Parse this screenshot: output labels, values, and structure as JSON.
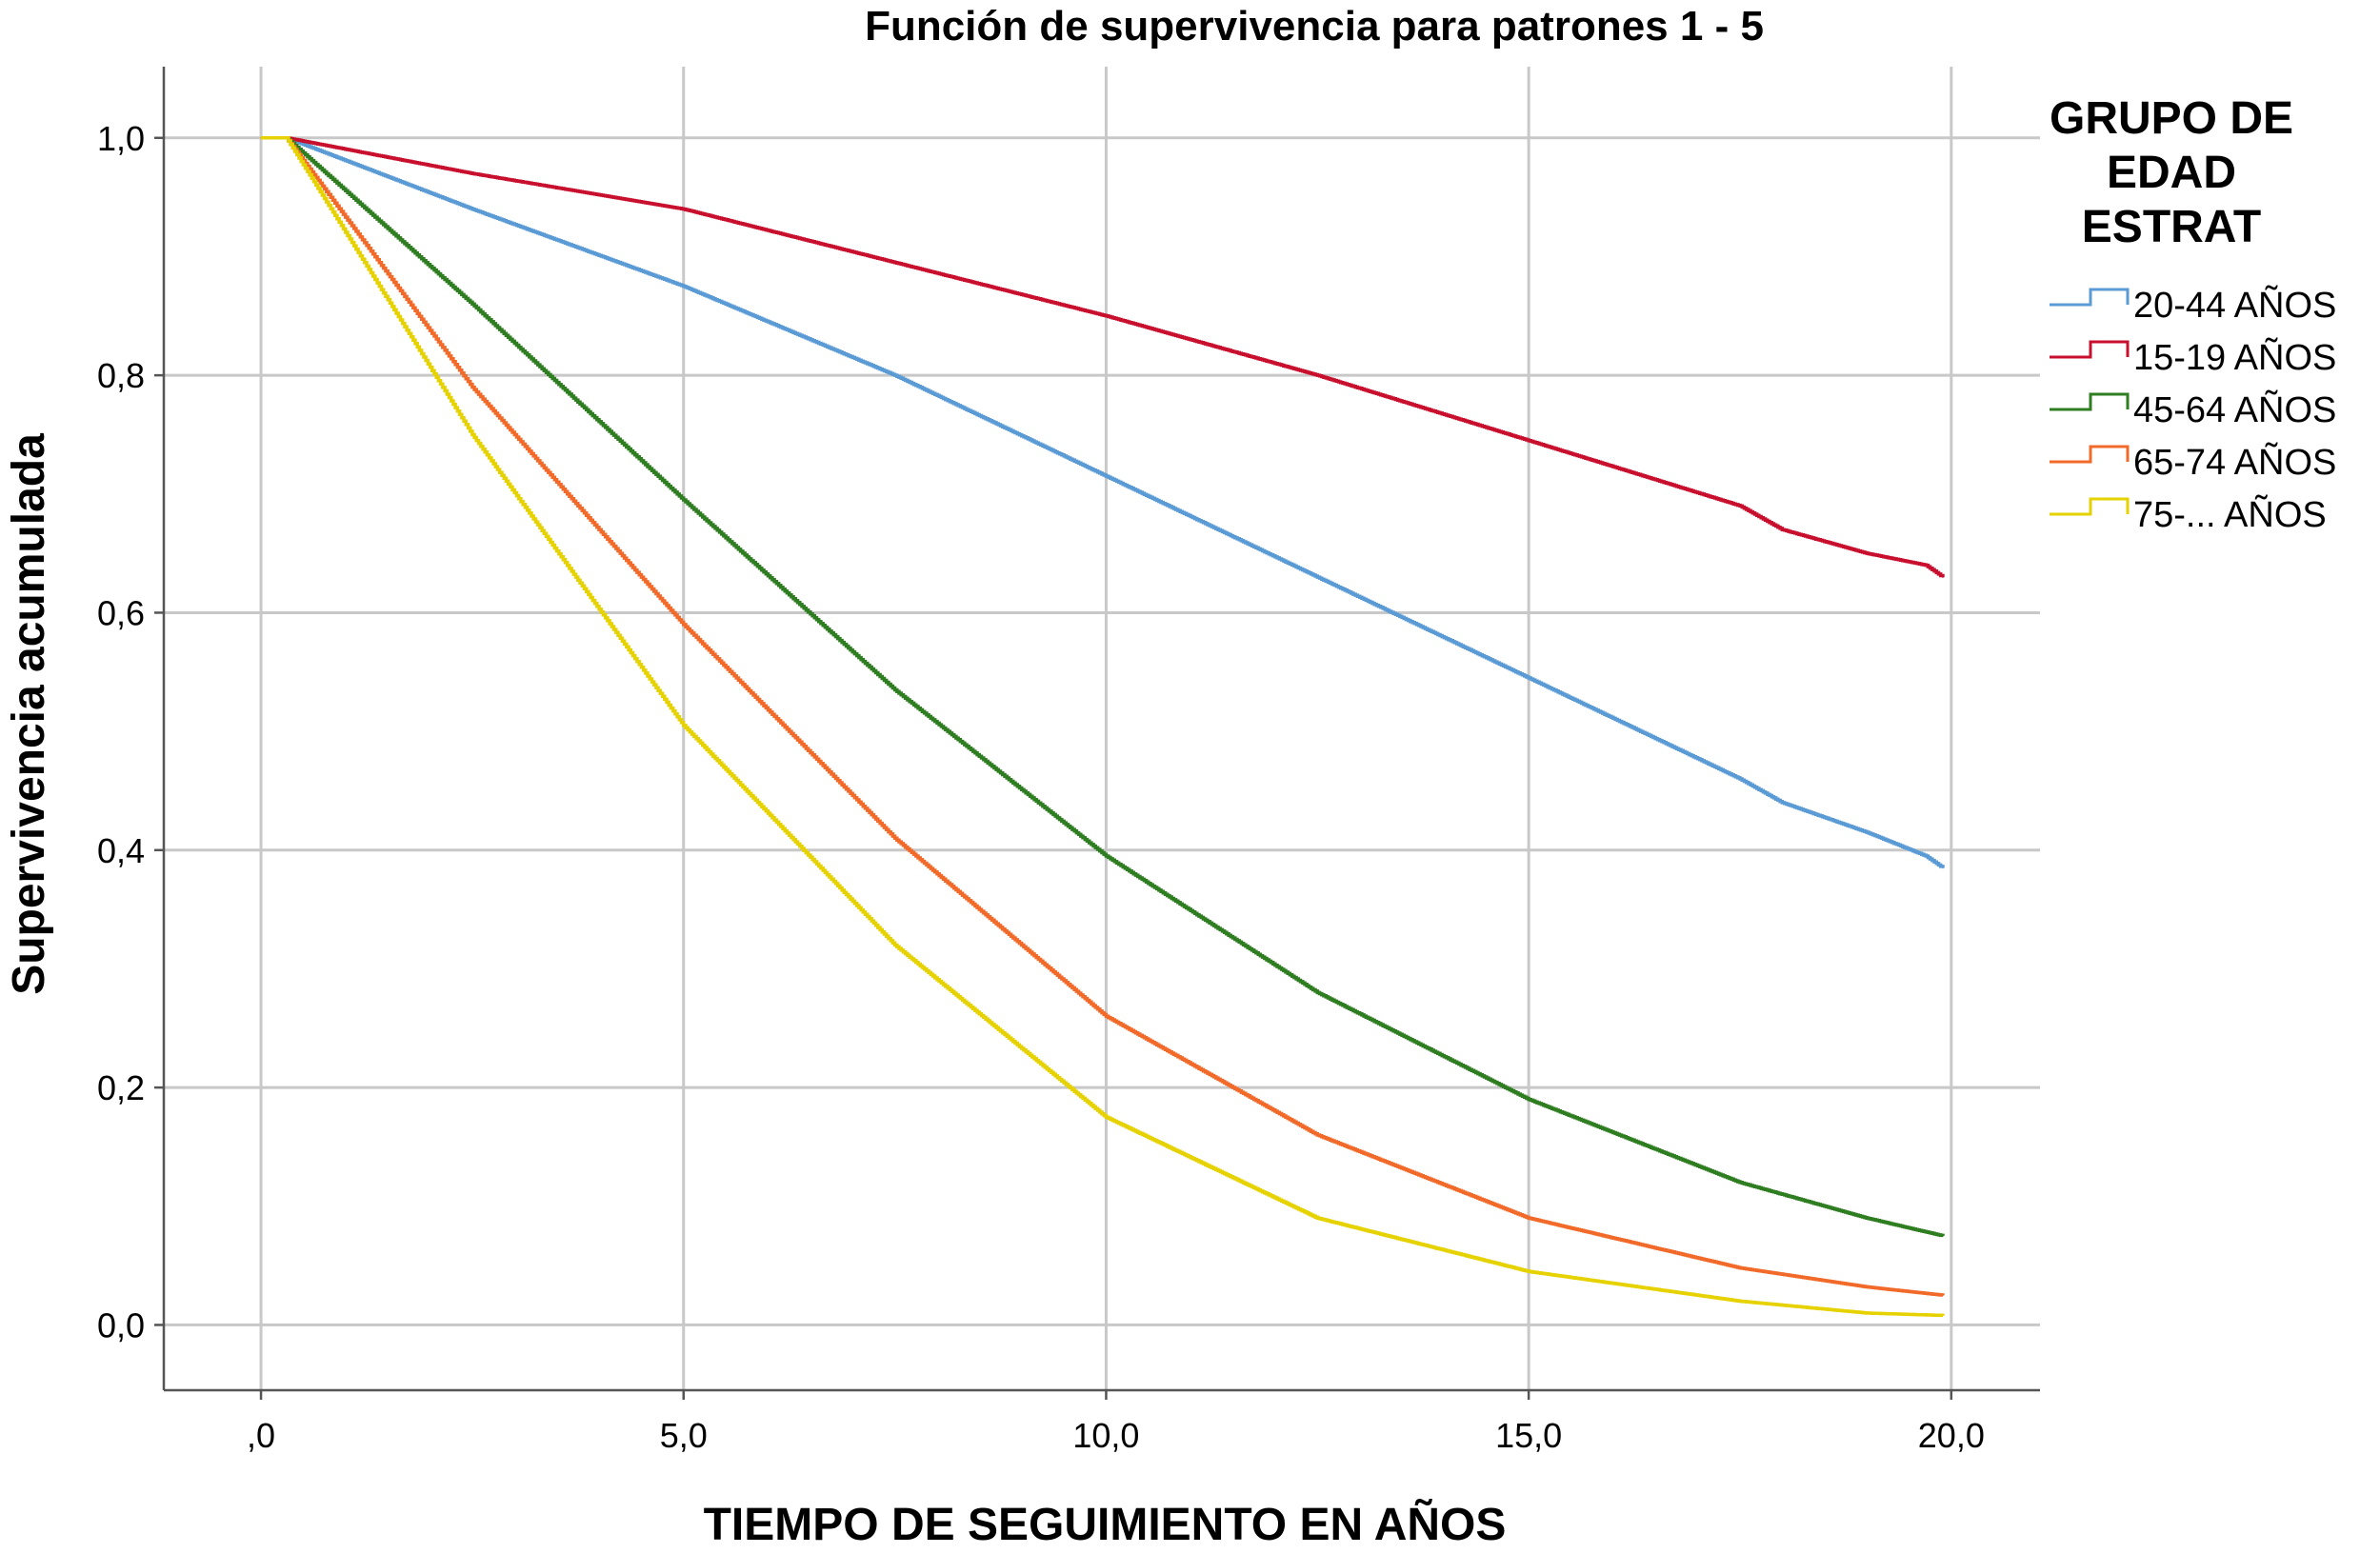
{
  "chart_data": {
    "type": "line",
    "title": "Función de supervivencia para patrones 1 - 5",
    "xlabel": "TIEMPO DE SEGUIMIENTO EN AÑOS",
    "ylabel": "Supervivencia acumulada",
    "xlim": [
      -1.15,
      21.05
    ],
    "ylim": [
      -0.055,
      1.06
    ],
    "x_ticks": [
      0,
      5,
      10,
      15,
      20
    ],
    "x_tick_labels": [
      ",0",
      "5,0",
      "10,0",
      "15,0",
      "20,0"
    ],
    "y_ticks": [
      0,
      0.2,
      0.4,
      0.6,
      0.8,
      1.0
    ],
    "y_tick_labels": [
      "0,0",
      "0,2",
      "0,4",
      "0,6",
      "0,8",
      "1,0"
    ],
    "grid": true,
    "legend": {
      "title": "GRUPO DE EDAD ESTRAT",
      "title_lines": [
        "GRUPO DE",
        "EDAD",
        "ESTRAT"
      ],
      "placement": "right"
    },
    "series": [
      {
        "name": "20-44 AÑOS",
        "color": "#5b9bd5",
        "x": [
          0.0,
          0.3,
          2.5,
          5.0,
          7.5,
          10.0,
          12.5,
          15.0,
          17.5,
          18.0,
          19.0,
          19.7,
          19.9
        ],
        "y": [
          1.0,
          1.0,
          0.94,
          0.875,
          0.8,
          0.715,
          0.63,
          0.545,
          0.46,
          0.44,
          0.415,
          0.395,
          0.385
        ]
      },
      {
        "name": "15-19 AÑOS",
        "color": "#c8102e",
        "x": [
          0.0,
          0.3,
          2.5,
          5.0,
          7.5,
          10.0,
          12.5,
          15.0,
          17.5,
          18.0,
          19.0,
          19.7,
          19.9
        ],
        "y": [
          1.0,
          1.0,
          0.97,
          0.94,
          0.895,
          0.85,
          0.8,
          0.745,
          0.69,
          0.67,
          0.65,
          0.64,
          0.63
        ]
      },
      {
        "name": "45-64 AÑOS",
        "color": "#2e7d20",
        "x": [
          0.0,
          0.3,
          2.5,
          5.0,
          7.5,
          10.0,
          12.5,
          15.0,
          17.5,
          19.0,
          19.9
        ],
        "y": [
          1.0,
          1.0,
          0.86,
          0.695,
          0.535,
          0.395,
          0.28,
          0.19,
          0.12,
          0.09,
          0.075
        ]
      },
      {
        "name": "65-74 AÑOS",
        "color": "#f26a2a",
        "x": [
          0.0,
          0.3,
          2.5,
          5.0,
          7.5,
          10.0,
          12.5,
          15.0,
          17.5,
          19.0,
          19.9
        ],
        "y": [
          1.0,
          1.0,
          0.79,
          0.59,
          0.41,
          0.26,
          0.16,
          0.09,
          0.048,
          0.032,
          0.025
        ]
      },
      {
        "name": "75-... AÑOS",
        "color": "#e6d200",
        "x": [
          0.0,
          0.3,
          2.5,
          5.0,
          7.5,
          10.0,
          12.5,
          15.0,
          17.5,
          19.0,
          19.9
        ],
        "y": [
          1.0,
          1.0,
          0.75,
          0.505,
          0.32,
          0.175,
          0.09,
          0.045,
          0.02,
          0.01,
          0.008
        ]
      }
    ]
  }
}
